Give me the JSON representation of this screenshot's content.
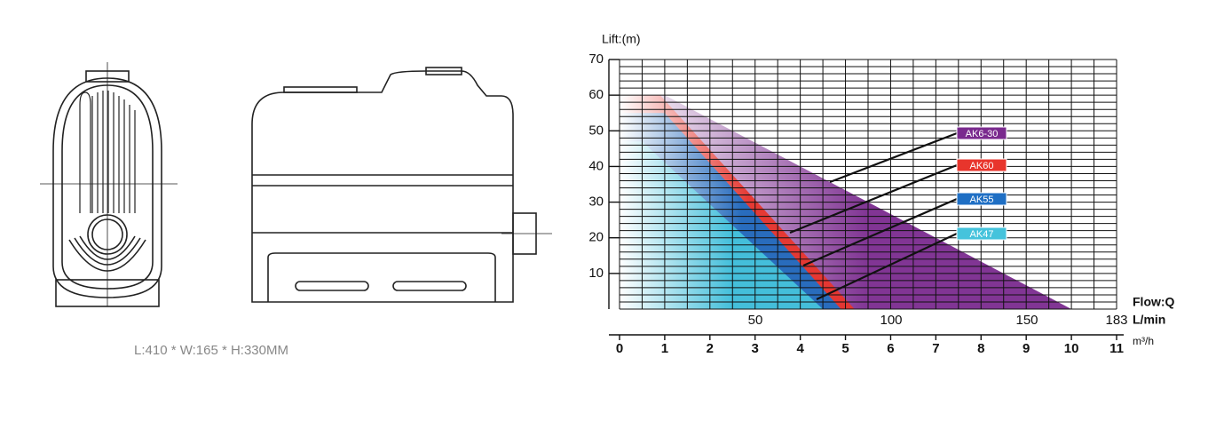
{
  "caption": "L:410 * W:165 * H:330MM",
  "chart_data": {
    "type": "area",
    "y_label": "Lift:(m)",
    "x_label": "Flow:Q",
    "x2_label": "L/min",
    "x_unit": "m³/h",
    "xlim": [
      0,
      11
    ],
    "xticks": [
      0,
      1,
      2,
      3,
      4,
      5,
      6,
      7,
      8,
      9,
      10,
      11
    ],
    "x2lim": [
      0,
      183
    ],
    "x2ticks": [
      50,
      100,
      150,
      183
    ],
    "ylim": [
      0,
      70
    ],
    "yticks": [
      10,
      20,
      30,
      40,
      50,
      60,
      70
    ],
    "grid": true,
    "xminor": 0.5,
    "yminor": 2,
    "series": [
      {
        "name": "AK6-30",
        "color": "#7a2a8e",
        "x": [
          0,
          1,
          10
        ],
        "values": [
          60,
          60,
          0
        ]
      },
      {
        "name": "AK60",
        "color": "#e8352c",
        "x": [
          0,
          0.9,
          5.2
        ],
        "values": [
          60,
          60,
          0
        ]
      },
      {
        "name": "AK55",
        "color": "#1f6fc4",
        "x": [
          0,
          1,
          4.9
        ],
        "values": [
          55,
          55,
          0
        ]
      },
      {
        "name": "AK47",
        "color": "#45c3dc",
        "x": [
          0,
          0.5,
          4.5
        ],
        "values": [
          47,
          47,
          0
        ]
      }
    ]
  }
}
